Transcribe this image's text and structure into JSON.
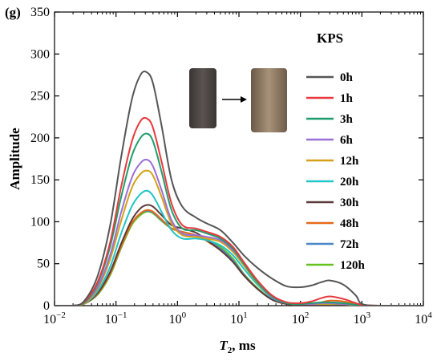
{
  "panel_label": "(g)",
  "legend_title": "KPS",
  "chart_data": {
    "type": "line",
    "x_scale": "log",
    "xlim": [
      0.01,
      10000
    ],
    "ylim": [
      0,
      350
    ],
    "xlabel_main": "T",
    "xlabel_sub": "2",
    "xlabel_suffix": ", ms",
    "ylabel": "Amplitude",
    "grid": false,
    "legend_position": "right",
    "x_ticks": [
      {
        "value": 0.01,
        "base": "10",
        "exp": "−2"
      },
      {
        "value": 0.1,
        "base": "10",
        "exp": "−1"
      },
      {
        "value": 1,
        "base": "10",
        "exp": "0"
      },
      {
        "value": 10,
        "base": "10",
        "exp": "1"
      },
      {
        "value": 100,
        "base": "10",
        "exp": "2"
      },
      {
        "value": 1000,
        "base": "10",
        "exp": "3"
      },
      {
        "value": 10000,
        "base": "10",
        "exp": "4"
      }
    ],
    "y_ticks": [
      0,
      50,
      100,
      150,
      200,
      250,
      300,
      350
    ],
    "x": [
      0.01,
      0.02,
      0.03,
      0.05,
      0.08,
      0.12,
      0.18,
      0.25,
      0.32,
      0.4,
      0.55,
      0.8,
      1.2,
      2,
      3,
      5,
      8,
      12,
      20,
      35,
      60,
      100,
      150,
      220,
      300,
      500,
      800,
      1000,
      2000,
      10000
    ],
    "series": [
      {
        "name": "0h",
        "color": "#555555",
        "values": [
          0,
          0,
          5,
          35,
          95,
          175,
          245,
          275,
          278,
          265,
          215,
          150,
          118,
          105,
          98,
          90,
          75,
          60,
          45,
          32,
          23,
          22,
          24,
          28,
          30,
          25,
          12,
          2,
          0,
          0
        ]
      },
      {
        "name": "1h",
        "color": "#e8393d",
        "values": [
          0,
          0,
          4,
          28,
          75,
          140,
          195,
          220,
          223,
          212,
          172,
          122,
          96,
          92,
          88,
          82,
          70,
          52,
          30,
          12,
          4,
          3,
          5,
          9,
          11,
          8,
          3,
          1,
          0,
          0
        ]
      },
      {
        "name": "3h",
        "color": "#1e9e6c",
        "values": [
          0,
          0,
          3,
          26,
          70,
          128,
          178,
          200,
          205,
          196,
          160,
          114,
          92,
          90,
          86,
          80,
          68,
          50,
          28,
          11,
          3,
          2,
          3,
          4,
          4,
          3,
          1,
          0,
          0,
          0
        ]
      },
      {
        "name": "6h",
        "color": "#9a6fd6",
        "values": [
          0,
          0,
          3,
          22,
          60,
          110,
          152,
          170,
          174,
          166,
          138,
          102,
          86,
          84,
          82,
          78,
          66,
          50,
          28,
          10,
          3,
          2,
          2,
          3,
          3,
          2,
          1,
          0,
          0,
          0
        ]
      },
      {
        "name": "12h",
        "color": "#d4a017",
        "values": [
          0,
          0,
          2,
          20,
          55,
          100,
          140,
          157,
          161,
          155,
          130,
          98,
          84,
          82,
          80,
          76,
          64,
          48,
          27,
          10,
          3,
          2,
          2,
          2,
          2,
          2,
          0,
          0,
          0,
          0
        ]
      },
      {
        "name": "20h",
        "color": "#22c4c4",
        "values": [
          0,
          0,
          2,
          17,
          46,
          85,
          118,
          133,
          137,
          131,
          112,
          90,
          80,
          80,
          78,
          72,
          60,
          44,
          25,
          9,
          3,
          2,
          2,
          2,
          2,
          2,
          0,
          0,
          0,
          0
        ]
      },
      {
        "name": "30h",
        "color": "#5c3a3a",
        "values": [
          0,
          0,
          2,
          15,
          40,
          73,
          102,
          116,
          120,
          118,
          108,
          96,
          92,
          87,
          78,
          66,
          52,
          36,
          20,
          7,
          2,
          1,
          1,
          1,
          1,
          1,
          0,
          0,
          0,
          0
        ]
      },
      {
        "name": "48h",
        "color": "#e66a1a",
        "values": [
          0,
          0,
          2,
          14,
          38,
          70,
          98,
          110,
          114,
          112,
          103,
          92,
          88,
          84,
          77,
          66,
          52,
          36,
          20,
          7,
          2,
          1,
          2,
          4,
          6,
          5,
          2,
          0,
          0,
          0
        ]
      },
      {
        "name": "72h",
        "color": "#4a86c8",
        "values": [
          0,
          0,
          2,
          14,
          38,
          70,
          98,
          110,
          113,
          111,
          102,
          92,
          88,
          84,
          78,
          68,
          54,
          37,
          20,
          7,
          2,
          1,
          2,
          3,
          4,
          3,
          1,
          0,
          0,
          0
        ]
      },
      {
        "name": "120h",
        "color": "#66c21e",
        "values": [
          0,
          0,
          2,
          13,
          36,
          68,
          96,
          108,
          112,
          110,
          101,
          92,
          88,
          84,
          79,
          70,
          56,
          38,
          21,
          7,
          2,
          1,
          1,
          1,
          1,
          1,
          0,
          0,
          0,
          0
        ]
      }
    ]
  }
}
